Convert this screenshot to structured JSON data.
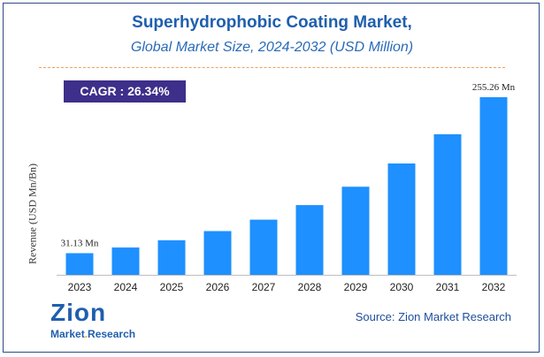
{
  "header": {
    "title": "Superhydrophobic Coating Market,",
    "subtitle": "Global Market Size, 2024-2032 (USD Million)"
  },
  "cagr_badge": "CAGR :  26.34%",
  "source": "Source: Zion Market Research",
  "logo": {
    "main": "Zion",
    "sub_left": "Market",
    "sub_dot": ".",
    "sub_right": "Research"
  },
  "colors": {
    "bar": "#1e90ff",
    "title": "#1f5fae",
    "badge": "#3d2f8a",
    "accent": "#f7941d"
  },
  "chart_data": {
    "type": "bar",
    "title": "Superhydrophobic Coating Market,",
    "subtitle": "Global Market Size, 2024-2032 (USD Million)",
    "xlabel": "",
    "ylabel": "Revenue (USD Mn/Bn)",
    "categories": [
      "2023",
      "2024",
      "2025",
      "2026",
      "2027",
      "2028",
      "2029",
      "2030",
      "2031",
      "2032"
    ],
    "values": [
      31.13,
      39.3,
      49.7,
      62.8,
      79.3,
      100.2,
      126.6,
      160.0,
      202.1,
      255.26
    ],
    "ylim": [
      0,
      255.26
    ],
    "grid": false,
    "legend": "none",
    "annotations": [
      {
        "index": 0,
        "text": "31.13 Mn"
      },
      {
        "index": 9,
        "text": "255.26 Mn"
      }
    ]
  }
}
